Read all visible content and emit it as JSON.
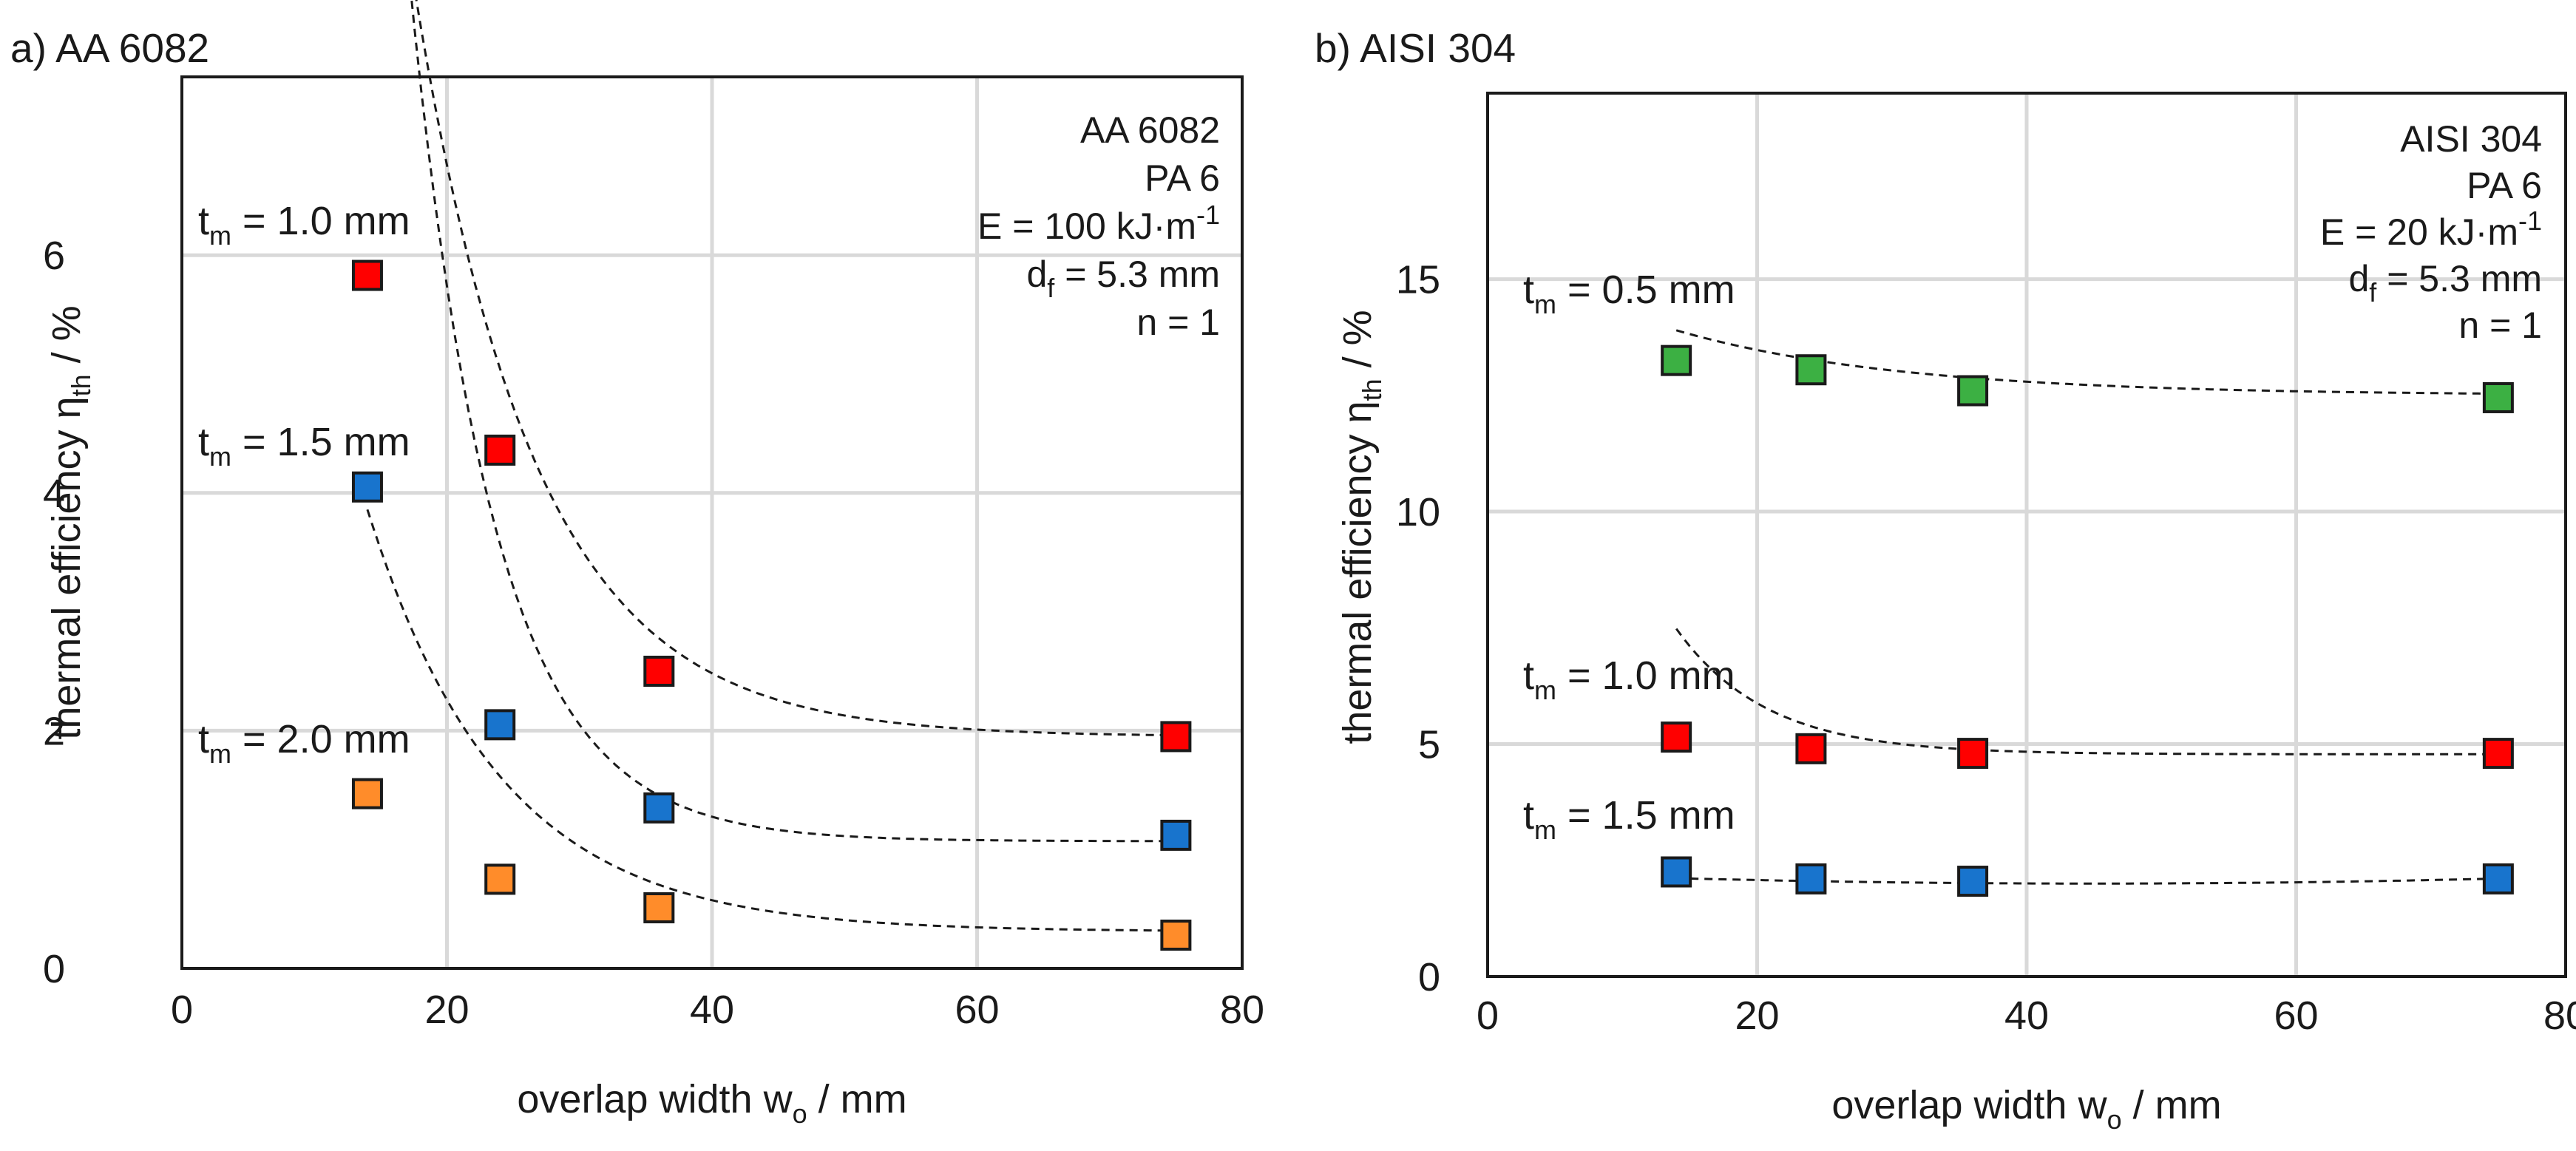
{
  "chart_data": [
    {
      "type": "scatter",
      "panel_label": "a) AA 6082",
      "xlabel": {
        "main": "overlap width w",
        "sub": "o",
        "unit": " / mm"
      },
      "ylabel": {
        "main": "thermal efficiency η",
        "sub": "th",
        "unit": " / %"
      },
      "xlim": [
        0,
        80
      ],
      "ylim": [
        0,
        7.5
      ],
      "xticks": [
        0,
        20,
        40,
        60,
        80
      ],
      "yticks": [
        0,
        2,
        4,
        6
      ],
      "grid": true,
      "annotation": [
        {
          "text": "AA 6082"
        },
        {
          "text": "PA 6"
        },
        {
          "text": "E = 100 kJ·m",
          "sup": "-1"
        },
        {
          "text": "d",
          "sub": "f",
          "after": " = 5.3 mm"
        },
        {
          "text": "n = 1"
        }
      ],
      "series": [
        {
          "name": "t_m = 1.0 mm",
          "label_pre": "t",
          "label_sub": "m",
          "label_post": " = 1.0 mm",
          "color": "#ff0000",
          "x": [
            14,
            24,
            36,
            75
          ],
          "y": [
            5.83,
            4.36,
            2.5,
            1.95
          ],
          "fit": {
            "a": 1.95,
            "b": 9.3,
            "k": 0.11
          }
        },
        {
          "name": "t_m = 1.5 mm",
          "label_pre": "t",
          "label_sub": "m",
          "label_post": " = 1.5 mm",
          "color": "#1874cd",
          "x": [
            14,
            24,
            36,
            75
          ],
          "y": [
            4.05,
            2.05,
            1.35,
            1.12
          ],
          "fit": {
            "a": 1.07,
            "b": 11.9,
            "k": 0.156
          }
        },
        {
          "name": "t_m = 2.0 mm",
          "label_pre": "t",
          "label_sub": "m",
          "label_post": " = 2.0 mm",
          "color": "#ff8c2a",
          "x": [
            14,
            24,
            36,
            75
          ],
          "y": [
            1.47,
            0.75,
            0.51,
            0.28
          ],
          "fit": {
            "a": 0.31,
            "b": 3.55,
            "k": 0.1
          }
        }
      ]
    },
    {
      "type": "scatter",
      "panel_label": "b) AISI 304",
      "xlabel": {
        "main": "overlap width w",
        "sub": "o",
        "unit": " / mm"
      },
      "ylabel": {
        "main": "thermal efficiency η",
        "sub": "th",
        "unit": " / %"
      },
      "xlim": [
        0,
        80
      ],
      "ylim": [
        0,
        19
      ],
      "xticks": [
        0,
        20,
        40,
        60,
        80
      ],
      "yticks": [
        0,
        5,
        10,
        15
      ],
      "grid": true,
      "annotation": [
        {
          "text": "AISI 304"
        },
        {
          "text": "PA 6"
        },
        {
          "text": "E = 20 kJ·m",
          "sup": "-1"
        },
        {
          "text": "d",
          "sub": "f",
          "after": " = 5.3 mm"
        },
        {
          "text": "n = 1"
        }
      ],
      "series": [
        {
          "name": "t_m = 0.5 mm",
          "label_pre": "t",
          "label_sub": "m",
          "label_post": " = 0.5 mm",
          "color": "#3cb043",
          "x": [
            14,
            24,
            36,
            75
          ],
          "y": [
            13.25,
            13.05,
            12.6,
            12.45
          ],
          "fit": {
            "a": 12.5,
            "b": 1.4,
            "k": 0.06
          }
        },
        {
          "name": "t_m = 1.0 mm",
          "label_pre": "t",
          "label_sub": "m",
          "label_post": " = 1.0 mm",
          "color": "#ff0000",
          "x": [
            14,
            24,
            36,
            75
          ],
          "y": [
            5.15,
            4.9,
            4.8,
            4.8
          ],
          "fit": {
            "a": 4.78,
            "b": 2.7,
            "k": 0.15
          }
        },
        {
          "name": "t_m = 1.5 mm",
          "label_pre": "t",
          "label_sub": "m",
          "label_post": " = 1.5 mm",
          "color": "#1874cd",
          "x": [
            14,
            24,
            36,
            75
          ],
          "y": [
            2.25,
            2.1,
            2.05,
            2.1
          ],
          "quad": {
            "x0": 45,
            "y0": 2.0,
            "c": 0.00012
          }
        }
      ]
    }
  ]
}
